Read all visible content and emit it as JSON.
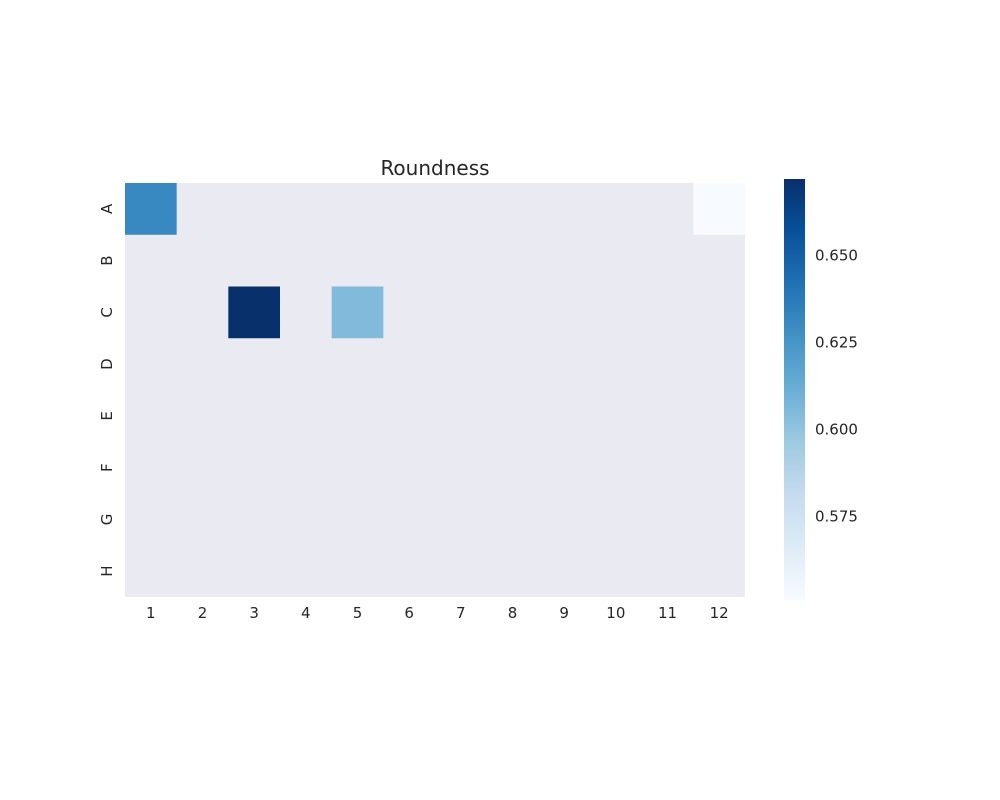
{
  "chart_data": {
    "type": "heatmap",
    "title": "Roundness",
    "xlabel": "",
    "ylabel": "",
    "x_categories": [
      "1",
      "2",
      "3",
      "4",
      "5",
      "6",
      "7",
      "8",
      "9",
      "10",
      "11",
      "12"
    ],
    "y_categories": [
      "A",
      "B",
      "C",
      "D",
      "E",
      "F",
      "G",
      "H"
    ],
    "missing_color": "#eaeaf2",
    "colormap": "Blues",
    "colorbar": {
      "min": 0.551,
      "max": 0.672,
      "ticks": [
        0.575,
        0.6,
        0.625,
        0.65
      ],
      "tick_labels": [
        "0.575",
        "0.600",
        "0.625",
        "0.650"
      ]
    },
    "cells": [
      {
        "row": "A",
        "col": "1",
        "value": 0.631
      },
      {
        "row": "A",
        "col": "12",
        "value": 0.551
      },
      {
        "row": "C",
        "col": "3",
        "value": 0.672
      },
      {
        "row": "C",
        "col": "5",
        "value": 0.605
      }
    ]
  }
}
